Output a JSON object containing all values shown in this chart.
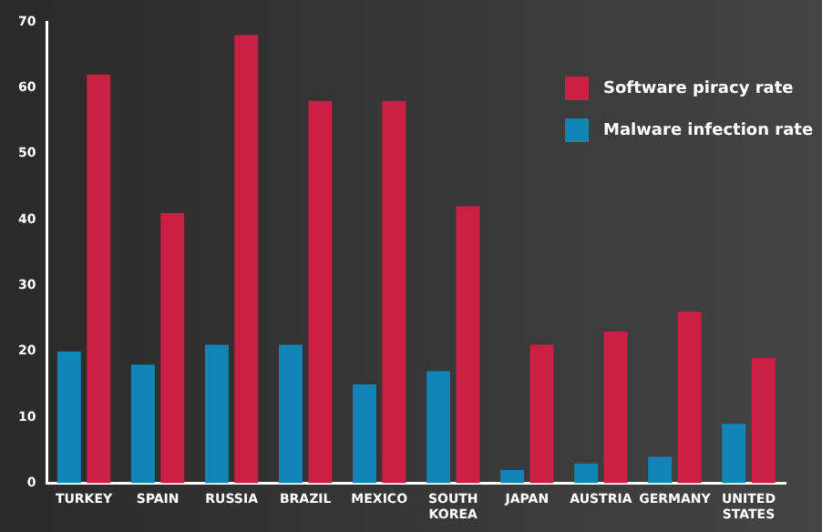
{
  "chart_data": {
    "type": "bar",
    "categories": [
      "TURKEY",
      "SPAIN",
      "RUSSIA",
      "BRAZIL",
      "MEXICO",
      "SOUTH KOREA",
      "JAPAN",
      "AUSTRIA",
      "GERMANY",
      "UNITED STATES"
    ],
    "series": [
      {
        "name": "Malware infection rate",
        "color": "#1185b8",
        "values": [
          20,
          18,
          21,
          21,
          15,
          17,
          2,
          3,
          4,
          9
        ]
      },
      {
        "name": "Software piracy rate",
        "color": "#cc1f44",
        "values": [
          62,
          41,
          68,
          58,
          58,
          42,
          21,
          23,
          26,
          19
        ]
      }
    ],
    "ylim": [
      0,
      70
    ],
    "yticks": [
      0,
      10,
      20,
      30,
      40,
      50,
      60,
      70
    ],
    "grid": false,
    "legend": "top right"
  }
}
